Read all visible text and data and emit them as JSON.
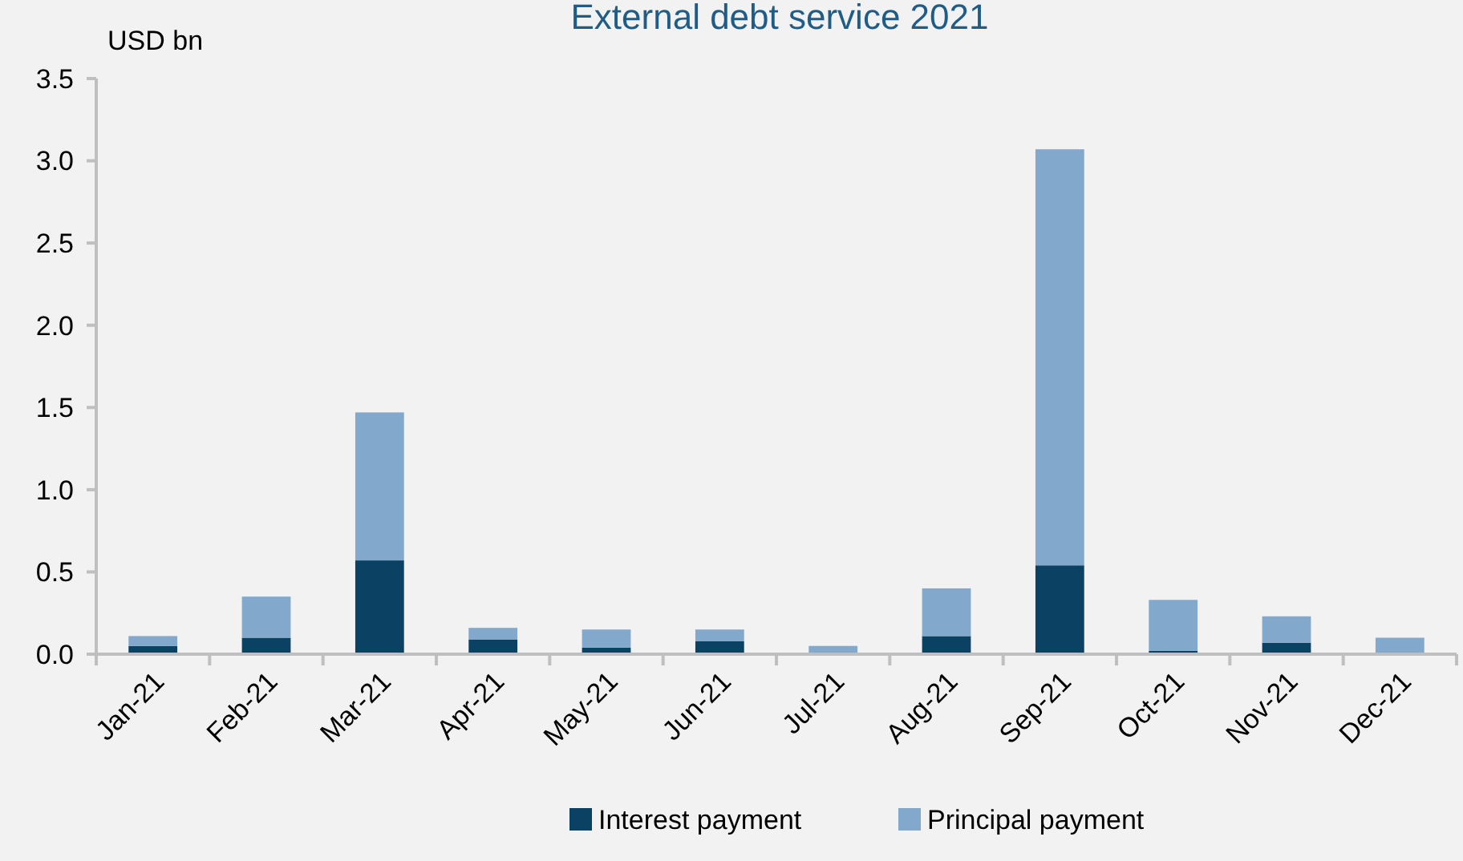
{
  "chart_data": {
    "type": "bar",
    "title": "External debt service 2021",
    "ylabel": "USD bn",
    "stacked": true,
    "legend": "bottom",
    "categories": [
      "Jan-21",
      "Feb-21",
      "Mar-21",
      "Apr-21",
      "May-21",
      "Jun-21",
      "Jul-21",
      "Aug-21",
      "Sep-21",
      "Oct-21",
      "Nov-21",
      "Dec-21"
    ],
    "series": [
      {
        "name": "Interest payment",
        "color": "#0b4263",
        "values": [
          0.05,
          0.1,
          0.57,
          0.09,
          0.04,
          0.08,
          0,
          0.11,
          0.54,
          0.02,
          0.07,
          0
        ]
      },
      {
        "name": "Principal payment",
        "color": "#82a8cb",
        "values": [
          0.06,
          0.25,
          0.9,
          0.07,
          0.11,
          0.07,
          0.05,
          0.29,
          2.53,
          0.31,
          0.16,
          0.1
        ]
      }
    ],
    "ylim": [
      0,
      3.5
    ],
    "yticks": [
      {
        "value": 0,
        "label": "0.0"
      },
      {
        "value": 0.5,
        "label": "0.5"
      },
      {
        "value": 1,
        "label": "1.0"
      },
      {
        "value": 1.5,
        "label": "1.5"
      },
      {
        "value": 2,
        "label": "2.0"
      },
      {
        "value": 2.5,
        "label": "2.5"
      },
      {
        "value": 3,
        "label": "3.0"
      },
      {
        "value": 3.5,
        "label": "3.5"
      }
    ]
  }
}
